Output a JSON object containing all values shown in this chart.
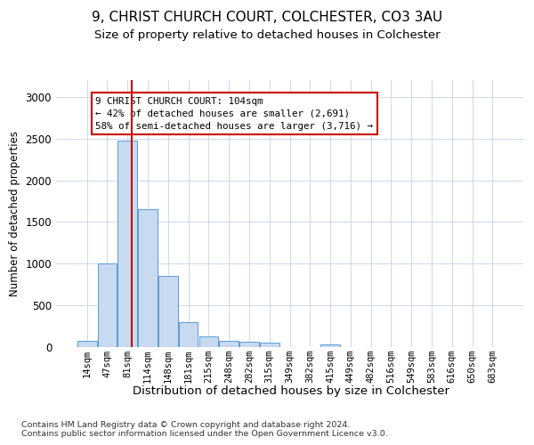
{
  "title1": "9, CHRIST CHURCH COURT, COLCHESTER, CO3 3AU",
  "title2": "Size of property relative to detached houses in Colchester",
  "xlabel": "Distribution of detached houses by size in Colchester",
  "ylabel": "Number of detached properties",
  "bar_labels": [
    "14sqm",
    "47sqm",
    "81sqm",
    "114sqm",
    "148sqm",
    "181sqm",
    "215sqm",
    "248sqm",
    "282sqm",
    "315sqm",
    "349sqm",
    "382sqm",
    "415sqm",
    "449sqm",
    "482sqm",
    "516sqm",
    "549sqm",
    "583sqm",
    "616sqm",
    "650sqm",
    "683sqm"
  ],
  "bar_values": [
    75,
    1000,
    2480,
    1650,
    850,
    300,
    130,
    75,
    60,
    50,
    5,
    5,
    35,
    5,
    5,
    5,
    0,
    0,
    0,
    0,
    0
  ],
  "bar_color": "#c8daf0",
  "bar_edge_color": "#5b9bd5",
  "vline_color": "#cc0000",
  "annotation_line1": "9 CHRIST CHURCH COURT: 104sqm",
  "annotation_line2": "← 42% of detached houses are smaller (2,691)",
  "annotation_line3": "58% of semi-detached houses are larger (3,716) →",
  "annotation_box_color": "#ffffff",
  "annotation_box_edge_color": "#cc0000",
  "ylim": [
    0,
    3200
  ],
  "yticks": [
    0,
    500,
    1000,
    1500,
    2000,
    2500,
    3000
  ],
  "footer1": "Contains HM Land Registry data © Crown copyright and database right 2024.",
  "footer2": "Contains public sector information licensed under the Open Government Licence v3.0.",
  "bg_color": "#ffffff",
  "grid_color": "#ccd8ec"
}
